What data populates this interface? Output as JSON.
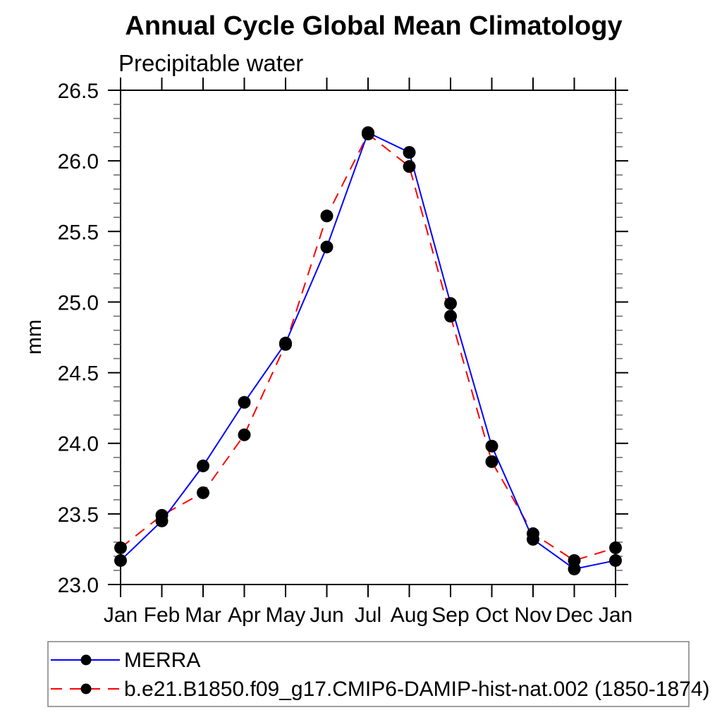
{
  "chart_data": {
    "type": "line",
    "title": "Annual Cycle Global Mean Climatology",
    "subtitle": "Precipitable water",
    "ylabel": "mm",
    "xlabel": "",
    "categories": [
      "Jan",
      "Feb",
      "Mar",
      "Apr",
      "May",
      "Jun",
      "Jul",
      "Aug",
      "Sep",
      "Oct",
      "Nov",
      "Dec",
      "Jan"
    ],
    "ylim": [
      23.0,
      26.5
    ],
    "ytick_major": 0.5,
    "ytick_minor": 0.1,
    "ytick_labels": [
      "23.0",
      "23.5",
      "24.0",
      "24.5",
      "25.0",
      "25.5",
      "26.0",
      "26.5"
    ],
    "grid": false,
    "legend_position": "bottom",
    "marker": "filled-circle",
    "marker_color": "#000000",
    "series": [
      {
        "name": "MERRA",
        "color": "#0000ff",
        "line_style": "solid",
        "values": [
          23.17,
          23.45,
          23.84,
          24.29,
          24.71,
          25.39,
          26.2,
          26.06,
          24.99,
          23.98,
          23.32,
          23.11,
          23.17
        ]
      },
      {
        "name": "b.e21.B1850.f09_g17.CMIP6-DAMIP-hist-nat.002 (1850-1874)",
        "color": "#ff0000",
        "line_style": "dashed",
        "values": [
          23.26,
          23.49,
          23.65,
          24.06,
          24.7,
          25.61,
          26.19,
          25.96,
          24.9,
          23.87,
          23.36,
          23.17,
          23.26
        ]
      }
    ]
  }
}
